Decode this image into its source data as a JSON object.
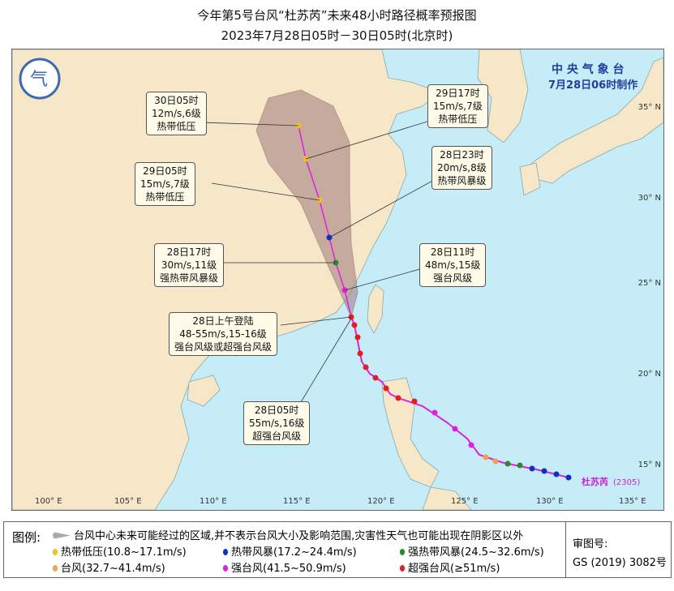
{
  "title": "今年第5号台风“杜苏芮”未来48小时路径概率预报图",
  "subtitle": "2023年7月28日05时－30日05时(北京时)",
  "agency": {
    "name": "中 央 气 象 台",
    "issued": "7月28日06时制作"
  },
  "axes": {
    "lon": [
      "100° E",
      "105° E",
      "110° E",
      "115° E",
      "120° E",
      "125° E",
      "130° E",
      "135° E"
    ],
    "lat": [
      "35° N",
      "30° N",
      "25° N",
      "20° N",
      "15° N"
    ]
  },
  "typhoon": {
    "name": "杜苏芮",
    "code": "(2305)"
  },
  "labels": [
    {
      "time": "30日05时",
      "wind": "12m/s,6级",
      "level": "热带低压"
    },
    {
      "time": "29日17时",
      "wind": "15m/s,7级",
      "level": "热带低压"
    },
    {
      "time": "29日05时",
      "wind": "15m/s,7级",
      "level": "热带低压"
    },
    {
      "time": "28日23时",
      "wind": "20m/s,8级",
      "level": "热带风暴级"
    },
    {
      "time": "28日17时",
      "wind": "30m/s,11级",
      "level": "强热带风暴级"
    },
    {
      "time": "28日11时",
      "wind": "48m/s,15级",
      "level": "强台风级"
    },
    {
      "time": "28日上午登陆",
      "wind": "48-55m/s,15-16级",
      "level": "强台风级或超强台风级"
    },
    {
      "time": "28日05时",
      "wind": "55m/s,16级",
      "level": "超强台风级"
    }
  ],
  "legend": {
    "title": "图例:",
    "cone": "台风中心未来可能经过的区域,并不表示台风大小及影响范围,灾害性天气也可能出现在阴影区以外",
    "items": [
      {
        "label": "热带低压(10.8~17.1m/s)",
        "color": "#f0c020"
      },
      {
        "label": "热带风暴(17.2~24.4m/s)",
        "color": "#1030c0"
      },
      {
        "label": "强热带风暴(24.5~32.6m/s)",
        "color": "#2a8a2a"
      },
      {
        "label": "台风(32.7~41.4m/s)",
        "color": "#f0a050"
      },
      {
        "label": "强台风(41.5~50.9m/s)",
        "color": "#e020e0"
      },
      {
        "label": "超强台风(≥51m/s)",
        "color": "#e02020"
      }
    ],
    "review_label": "审图号:",
    "review_no": "GS (2019) 3082号"
  },
  "colors": {
    "ocean": "#c6ecf8",
    "land": "#f6e7c9",
    "cone": "#a07a7a",
    "track": "#e020e0"
  }
}
